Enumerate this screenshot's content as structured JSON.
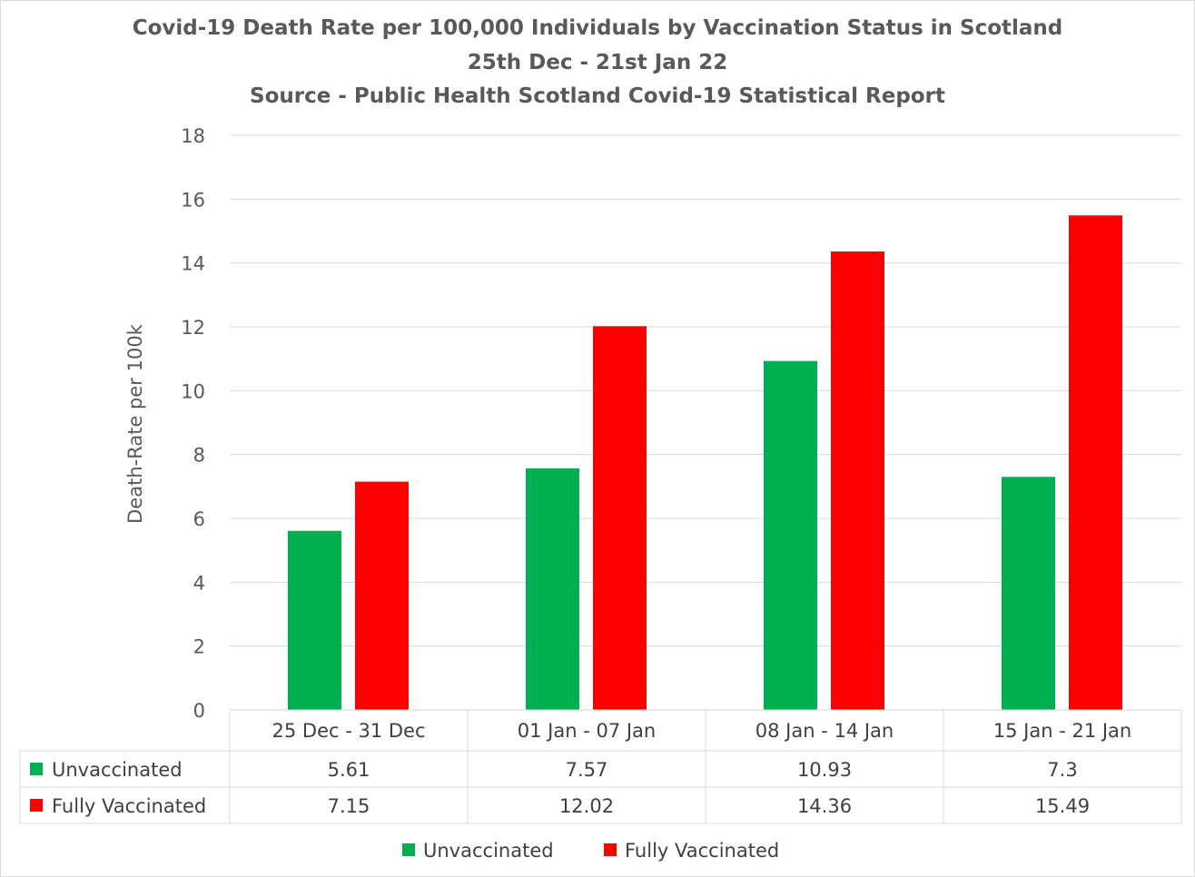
{
  "chart_data": {
    "type": "bar",
    "title": "Covid-19 Death Rate per 100,000 Individuals by Vaccination Status in Scotland",
    "subtitle": [
      "25th Dec - 21st Jan 22",
      "Source - Public Health Scotland Covid-19 Statistical Report"
    ],
    "xlabel": "",
    "ylabel": "Death-Rate per 100k",
    "ylim": [
      0,
      18
    ],
    "yticks": [
      0,
      2,
      4,
      6,
      8,
      10,
      12,
      14,
      16,
      18
    ],
    "grid": true,
    "legend": "bottom",
    "data_table": true,
    "categories": [
      "25 Dec - 31 Dec",
      "01 Jan - 07 Jan",
      "08 Jan - 14 Jan",
      "15 Jan - 21 Jan"
    ],
    "series": [
      {
        "name": "Unvaccinated",
        "color": "#00b050",
        "values": [
          5.61,
          7.57,
          10.93,
          7.3
        ],
        "labels": [
          "5.61",
          "7.57",
          "10.93",
          "7.3"
        ]
      },
      {
        "name": "Fully Vaccinated",
        "color": "#ff0000",
        "values": [
          7.15,
          12.02,
          14.36,
          15.49
        ],
        "labels": [
          "7.15",
          "12.02",
          "14.36",
          "15.49"
        ]
      }
    ]
  }
}
